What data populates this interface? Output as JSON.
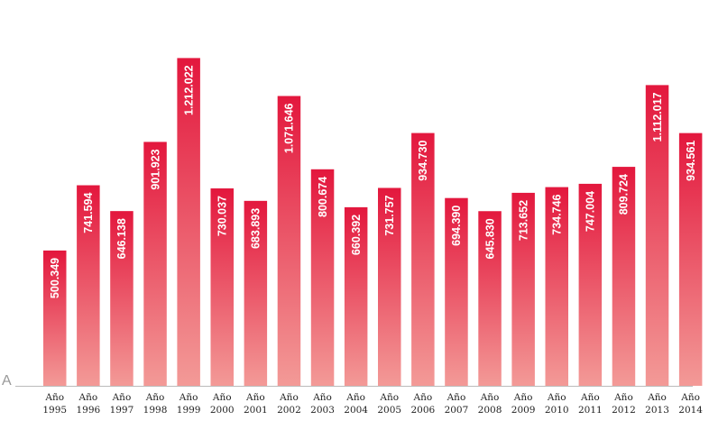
{
  "chart_data": {
    "type": "bar",
    "categories": [
      "Año\n1995",
      "Año\n1996",
      "Año\n1997",
      "Año\n1998",
      "Año\n1999",
      "Año\n2000",
      "Año\n2001",
      "Año\n2002",
      "Año\n2003",
      "Año\n2004",
      "Año\n2005",
      "Año\n2006",
      "Año\n2007",
      "Año\n2008",
      "Año\n2009",
      "Año\n2010",
      "Año\n2011",
      "Año\n2012",
      "Año\n2013",
      "Año\n2014"
    ],
    "values": [
      500349,
      741594,
      646138,
      901923,
      1212022,
      730037,
      683893,
      1071646,
      800674,
      660392,
      731757,
      934730,
      694390,
      645830,
      713652,
      734746,
      747004,
      809724,
      1112017,
      934561
    ],
    "value_labels": [
      "500.349",
      "741.594",
      "646.138",
      "901.923",
      "1.212.022",
      "730.037",
      "683.893",
      "1.071.646",
      "800.674",
      "660.392",
      "731.757",
      "934.730",
      "694.390",
      "645.830",
      "713.652",
      "734.746",
      "747.004",
      "809.724",
      "1.112.017",
      "934.561"
    ],
    "ylim": [
      0,
      1400000
    ],
    "color": "#e3173d",
    "color_bottom": "#f39a97",
    "note": "A"
  }
}
